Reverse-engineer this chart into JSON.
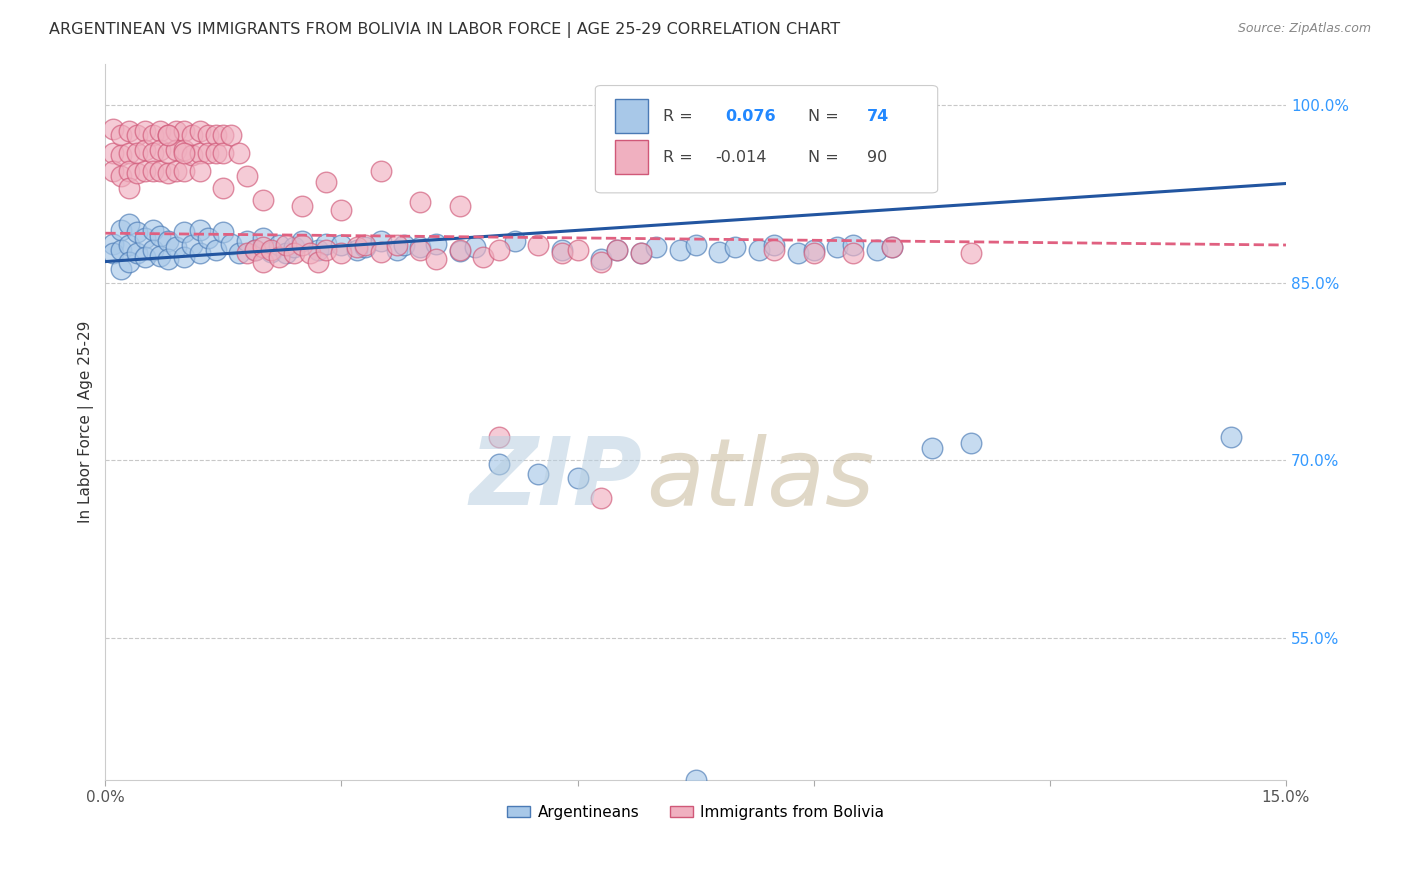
{
  "title": "ARGENTINEAN VS IMMIGRANTS FROM BOLIVIA IN LABOR FORCE | AGE 25-29 CORRELATION CHART",
  "source": "Source: ZipAtlas.com",
  "ylabel_left": "In Labor Force | Age 25-29",
  "x_lim": [
    0.0,
    0.15
  ],
  "y_lim": [
    0.43,
    1.035
  ],
  "x_tick_positions": [
    0.0,
    0.03,
    0.06,
    0.09,
    0.12,
    0.15
  ],
  "x_tick_labels": [
    "0.0%",
    "",
    "",
    "",
    "",
    "15.0%"
  ],
  "y_ticks_right": [
    1.0,
    0.85,
    0.7,
    0.55
  ],
  "y_tick_labels_right": [
    "100.0%",
    "85.0%",
    "70.0%",
    "55.0%"
  ],
  "blue_color": "#a8c8e8",
  "blue_edge_color": "#4a7ab5",
  "pink_color": "#f0b0c0",
  "pink_edge_color": "#d05878",
  "blue_line_color": "#2255a0",
  "pink_line_color": "#e06080",
  "legend_r_blue": "0.076",
  "legend_n_blue": "74",
  "legend_r_pink": "-0.014",
  "legend_n_pink": "90",
  "blue_trend": [
    0.868,
    0.934
  ],
  "pink_trend": [
    0.892,
    0.882
  ],
  "blue_x": [
    0.001,
    0.001,
    0.002,
    0.002,
    0.002,
    0.003,
    0.003,
    0.003,
    0.004,
    0.004,
    0.005,
    0.005,
    0.006,
    0.006,
    0.007,
    0.007,
    0.008,
    0.008,
    0.009,
    0.01,
    0.01,
    0.011,
    0.012,
    0.012,
    0.013,
    0.014,
    0.015,
    0.016,
    0.017,
    0.018,
    0.019,
    0.02,
    0.021,
    0.022,
    0.023,
    0.024,
    0.025,
    0.027,
    0.028,
    0.03,
    0.032,
    0.033,
    0.035,
    0.037,
    0.038,
    0.04,
    0.042,
    0.045,
    0.047,
    0.05,
    0.052,
    0.055,
    0.058,
    0.06,
    0.063,
    0.065,
    0.068,
    0.07,
    0.073,
    0.075,
    0.078,
    0.08,
    0.083,
    0.085,
    0.088,
    0.09,
    0.093,
    0.095,
    0.098,
    0.1,
    0.105,
    0.11,
    0.143,
    0.075
  ],
  "blue_y": [
    0.883,
    0.875,
    0.895,
    0.878,
    0.862,
    0.9,
    0.882,
    0.868,
    0.893,
    0.875,
    0.888,
    0.872,
    0.895,
    0.878,
    0.89,
    0.873,
    0.885,
    0.87,
    0.88,
    0.893,
    0.872,
    0.882,
    0.895,
    0.875,
    0.888,
    0.878,
    0.893,
    0.883,
    0.875,
    0.885,
    0.878,
    0.888,
    0.876,
    0.882,
    0.875,
    0.88,
    0.885,
    0.878,
    0.883,
    0.882,
    0.878,
    0.88,
    0.885,
    0.878,
    0.882,
    0.88,
    0.883,
    0.877,
    0.88,
    0.697,
    0.885,
    0.688,
    0.878,
    0.685,
    0.87,
    0.878,
    0.875,
    0.88,
    0.878,
    0.882,
    0.876,
    0.88,
    0.878,
    0.882,
    0.875,
    0.878,
    0.88,
    0.882,
    0.878,
    0.88,
    0.71,
    0.715,
    0.72,
    0.43
  ],
  "pink_x": [
    0.001,
    0.001,
    0.001,
    0.002,
    0.002,
    0.002,
    0.003,
    0.003,
    0.003,
    0.003,
    0.004,
    0.004,
    0.004,
    0.005,
    0.005,
    0.005,
    0.006,
    0.006,
    0.006,
    0.007,
    0.007,
    0.007,
    0.008,
    0.008,
    0.008,
    0.009,
    0.009,
    0.009,
    0.01,
    0.01,
    0.01,
    0.011,
    0.011,
    0.012,
    0.012,
    0.013,
    0.013,
    0.014,
    0.014,
    0.015,
    0.015,
    0.016,
    0.017,
    0.018,
    0.019,
    0.02,
    0.02,
    0.021,
    0.022,
    0.023,
    0.024,
    0.025,
    0.026,
    0.027,
    0.028,
    0.03,
    0.032,
    0.033,
    0.035,
    0.037,
    0.04,
    0.042,
    0.045,
    0.048,
    0.05,
    0.055,
    0.058,
    0.06,
    0.063,
    0.065,
    0.068,
    0.018,
    0.028,
    0.035,
    0.008,
    0.01,
    0.012,
    0.015,
    0.02,
    0.025,
    0.03,
    0.04,
    0.045,
    0.05,
    0.085,
    0.063,
    0.09,
    0.095,
    0.1,
    0.11
  ],
  "pink_y": [
    0.98,
    0.96,
    0.945,
    0.975,
    0.958,
    0.94,
    0.978,
    0.96,
    0.945,
    0.93,
    0.975,
    0.96,
    0.943,
    0.978,
    0.962,
    0.945,
    0.975,
    0.96,
    0.945,
    0.978,
    0.962,
    0.945,
    0.975,
    0.96,
    0.943,
    0.978,
    0.962,
    0.945,
    0.978,
    0.962,
    0.945,
    0.975,
    0.958,
    0.978,
    0.96,
    0.975,
    0.96,
    0.975,
    0.96,
    0.975,
    0.96,
    0.975,
    0.96,
    0.875,
    0.878,
    0.88,
    0.868,
    0.878,
    0.872,
    0.882,
    0.875,
    0.882,
    0.875,
    0.868,
    0.878,
    0.875,
    0.88,
    0.882,
    0.876,
    0.882,
    0.878,
    0.87,
    0.878,
    0.872,
    0.878,
    0.882,
    0.875,
    0.878,
    0.868,
    0.878,
    0.875,
    0.94,
    0.935,
    0.945,
    0.975,
    0.96,
    0.945,
    0.93,
    0.92,
    0.915,
    0.912,
    0.918,
    0.915,
    0.72,
    0.878,
    0.668,
    0.875,
    0.875,
    0.88,
    0.875
  ]
}
